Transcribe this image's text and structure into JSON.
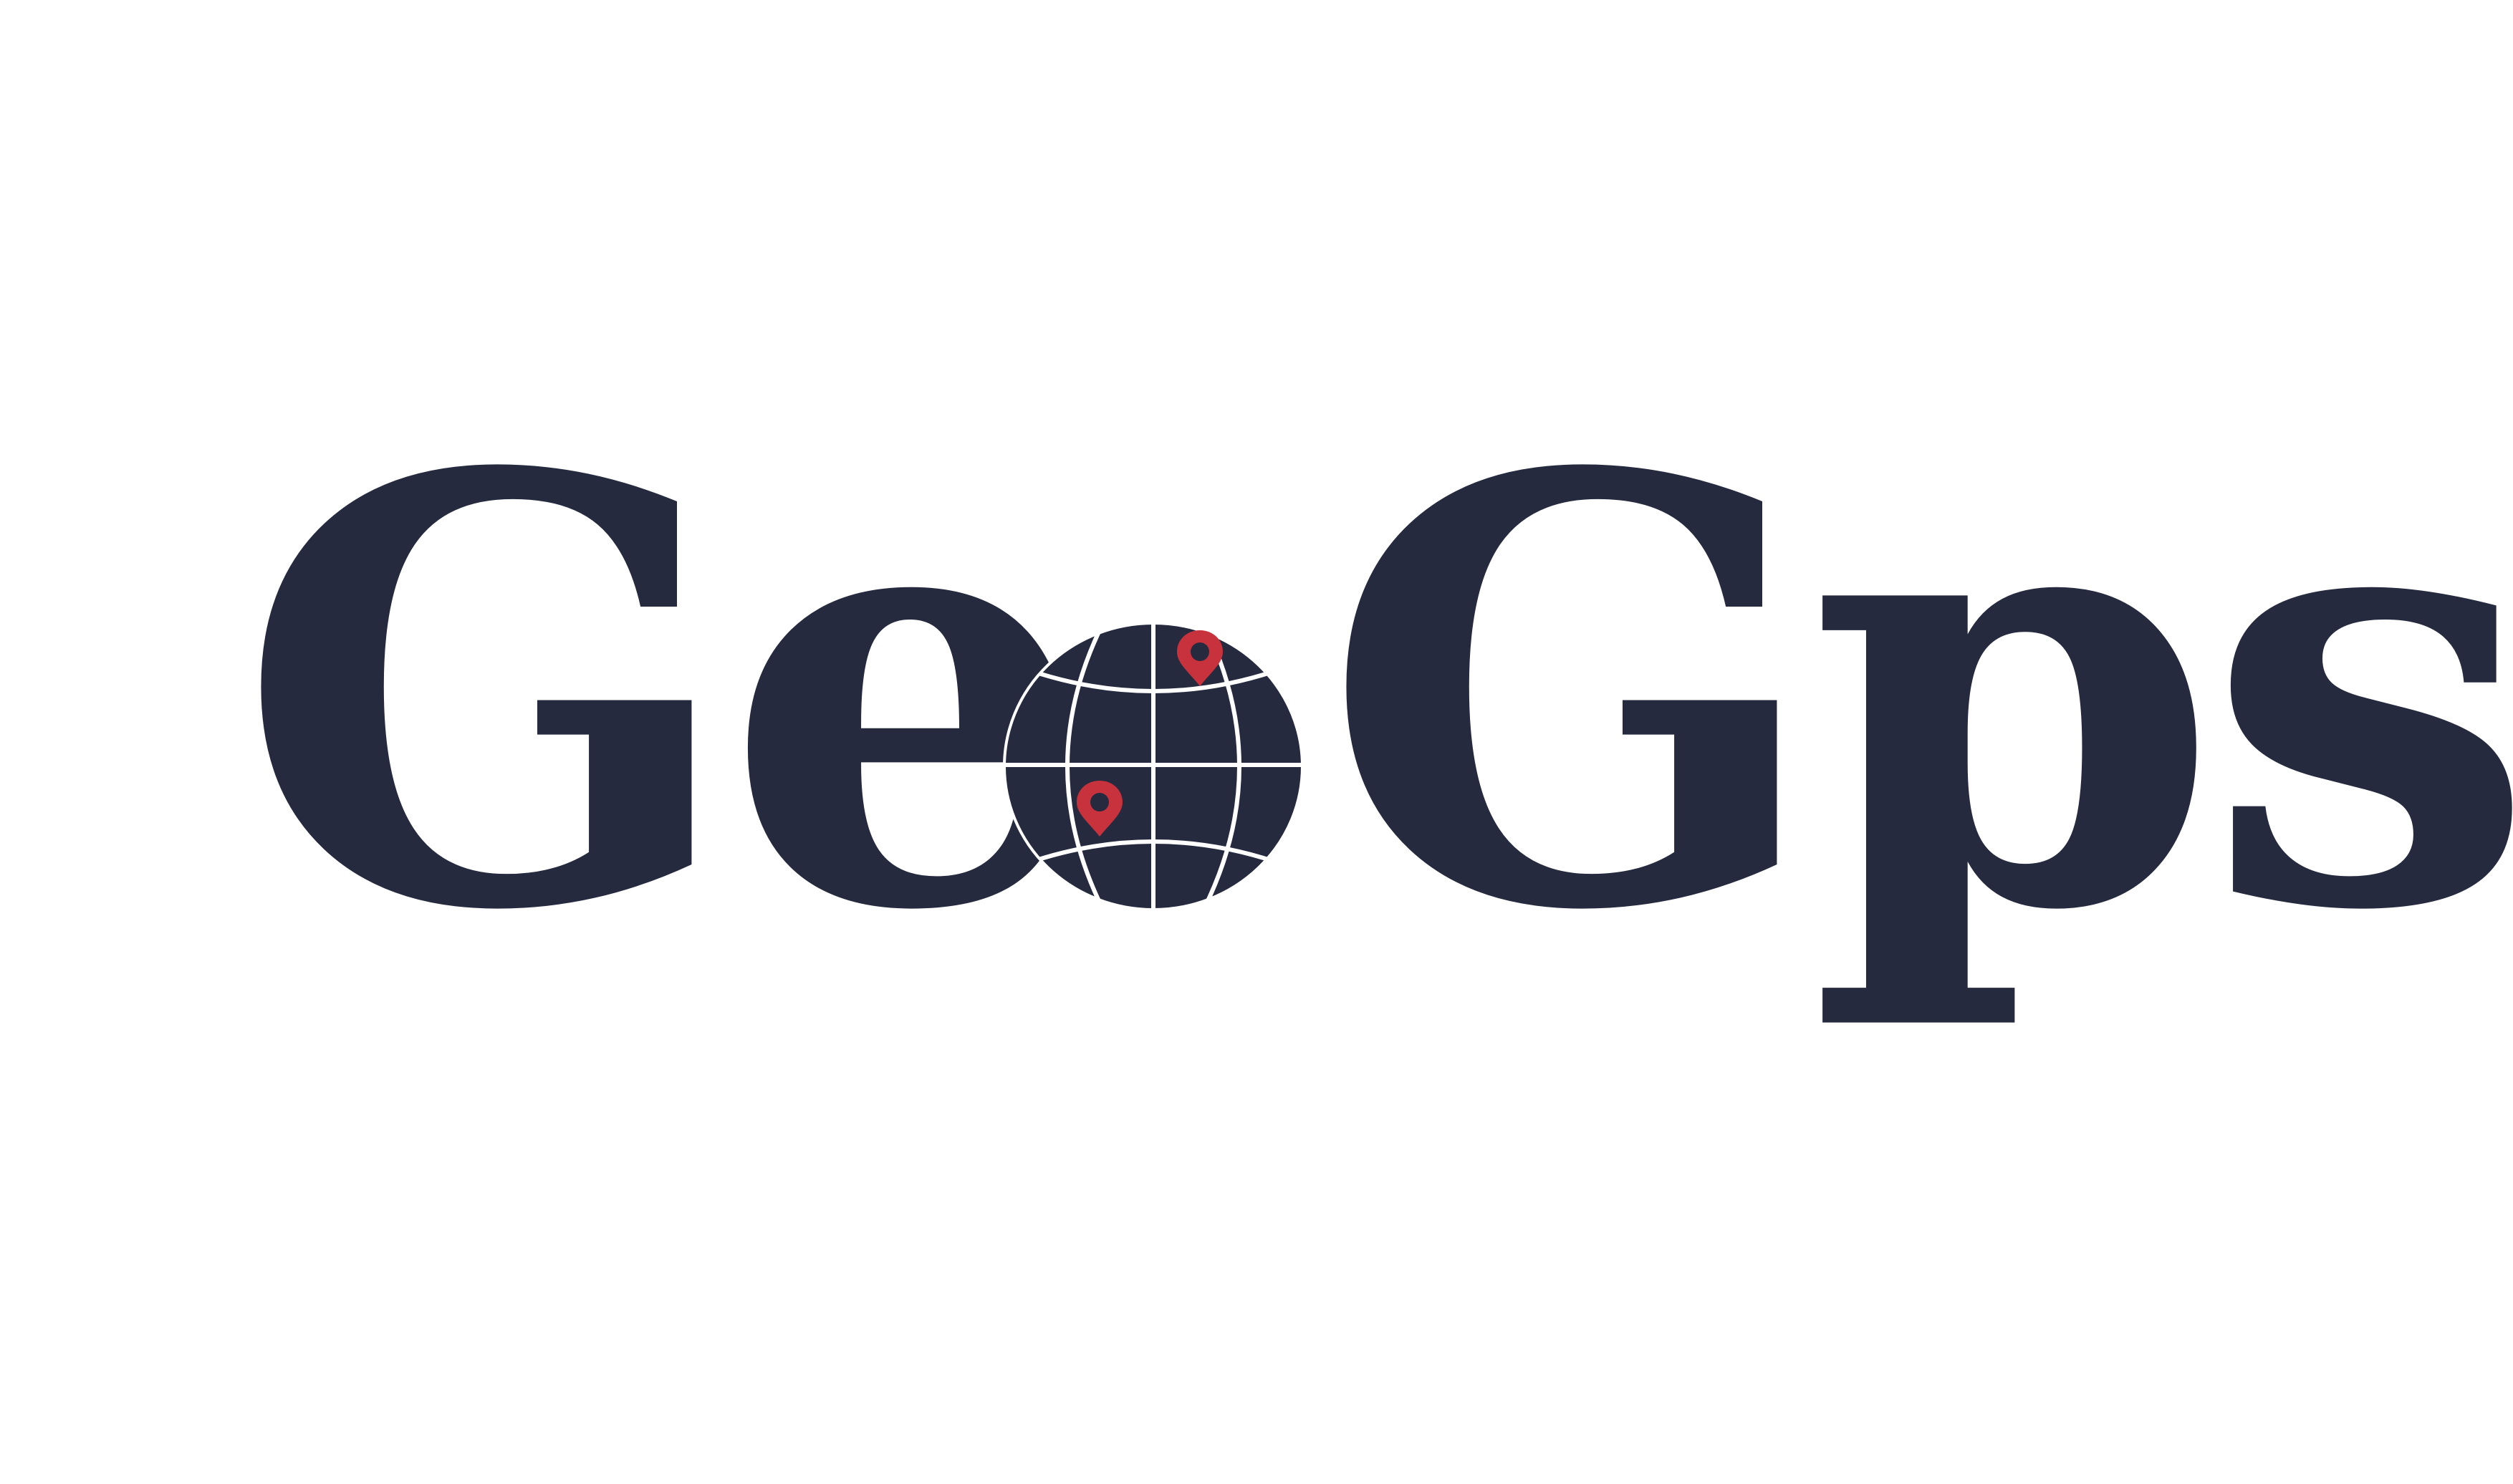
{
  "logo": {
    "text_before_globe": "Ge",
    "text_after_globe": "Gps",
    "globe_icon": "globe-with-location-pins-icon",
    "pin_icon": "map-pin-icon"
  },
  "colors": {
    "background": "#ffffff",
    "text": "#262a3f",
    "globe": "#262a3f",
    "globe_grid": "#ffffff",
    "pin": "#c8323c"
  }
}
